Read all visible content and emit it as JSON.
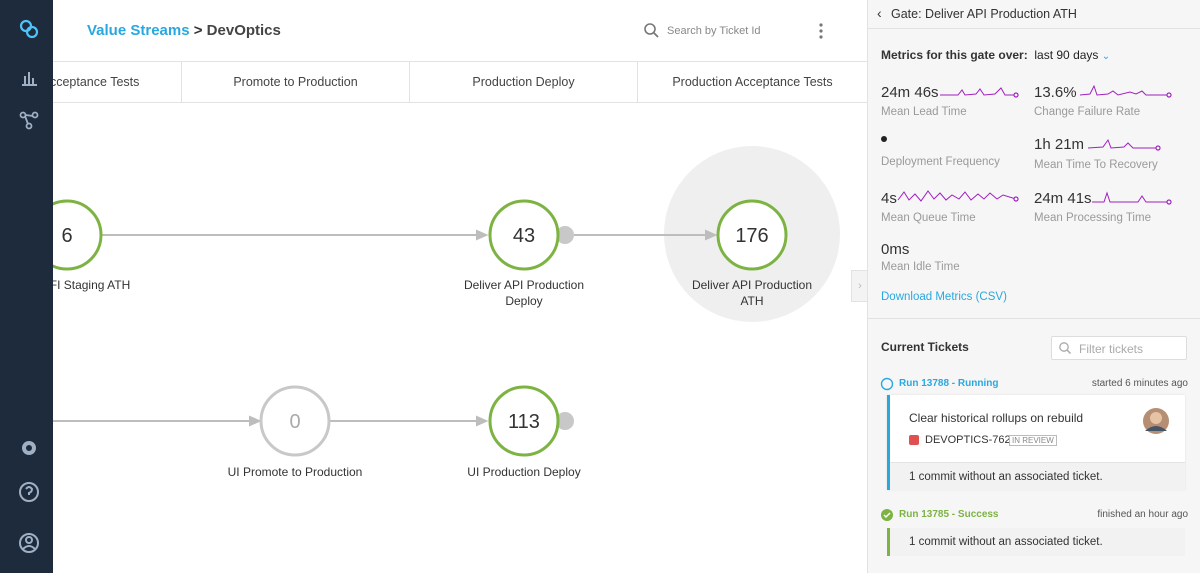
{
  "breadcrumb": {
    "link": "Value Streams",
    "separator": ">",
    "current": "DevOptics"
  },
  "search_placeholder": "Search by Ticket Id",
  "columns": [
    "Acceptance Tests",
    "Promote to Production",
    "Production Deploy",
    "Production Acceptance Tests"
  ],
  "nodes": [
    {
      "count": 6,
      "label_lines": [
        "FI Staging ATH"
      ]
    },
    {
      "count": 43,
      "label_lines": [
        "Deliver API Production",
        "Deploy"
      ]
    },
    {
      "count": 176,
      "label_lines": [
        "Deliver API Production",
        "ATH"
      ]
    },
    {
      "count": 0,
      "label_lines": [
        "UI Promote to Production"
      ]
    },
    {
      "count": 113,
      "label_lines": [
        "UI Production Deploy"
      ]
    }
  ],
  "panel": {
    "title": "Gate: Deliver API Production ATH",
    "metrics_heading": "Metrics for this gate over:",
    "period": "last 90 days",
    "metrics": [
      {
        "value": "24m 46s",
        "label": "Mean Lead Time"
      },
      {
        "value": "13.6%",
        "label": "Change Failure Rate"
      },
      {
        "label": "Deployment Frequency"
      },
      {
        "value": "1h 21m",
        "label": "Mean Time To Recovery"
      },
      {
        "value": "4s",
        "label": "Mean Queue Time"
      },
      {
        "value": "24m 41s",
        "label": "Mean Processing Time"
      },
      {
        "value": "0ms",
        "label": "Mean Idle Time"
      }
    ],
    "download": "Download Metrics (CSV)",
    "tickets_heading": "Current Tickets",
    "filter_placeholder": "Filter tickets",
    "runs": [
      {
        "title": "Run 13788 - Running",
        "time": "started 6 minutes ago",
        "ticket": {
          "title": "Clear historical rollups on rebuild",
          "id": "DEVOPTICS-762",
          "status": "IN REVIEW"
        },
        "note": "1 commit without an associated ticket."
      },
      {
        "title": "Run 13785 - Success",
        "time": "finished an hour ago",
        "note": "1 commit without an associated ticket."
      }
    ]
  }
}
